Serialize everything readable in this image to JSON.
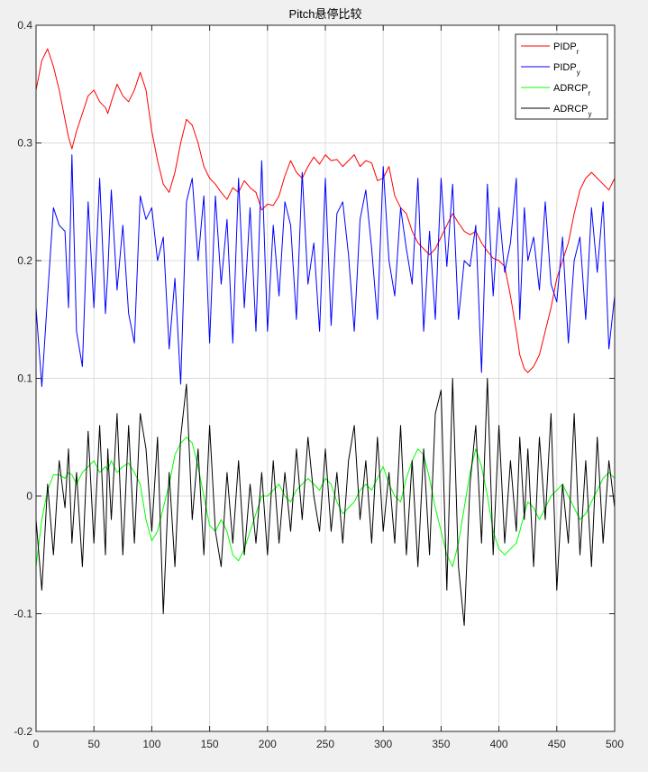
{
  "figure": {
    "title": "Pitch悬停比较"
  },
  "chart_data": {
    "type": "line",
    "title": "Pitch悬停比较",
    "xlabel": "",
    "ylabel": "",
    "xlim": [
      0,
      500
    ],
    "ylim": [
      -0.2,
      0.4
    ],
    "xticks": [
      0,
      50,
      100,
      150,
      200,
      250,
      300,
      350,
      400,
      450,
      500
    ],
    "yticks": [
      -0.2,
      -0.1,
      0,
      0.1,
      0.2,
      0.3,
      0.4
    ],
    "xtick_labels": [
      "0",
      "50",
      "100",
      "150",
      "200",
      "250",
      "300",
      "350",
      "400",
      "450",
      "500"
    ],
    "ytick_labels": [
      "-0.2",
      "-0.1",
      "0",
      "0.1",
      "0.2",
      "0.3",
      "0.4"
    ],
    "grid": true,
    "legend_position": "top-right",
    "series": [
      {
        "name": "PIDP",
        "subscript": "r",
        "color": "#ff0000",
        "x": [
          0,
          5,
          10,
          15,
          20,
          25,
          28,
          31,
          35,
          40,
          45,
          50,
          55,
          60,
          62,
          65,
          70,
          75,
          80,
          85,
          90,
          95,
          100,
          105,
          110,
          115,
          120,
          125,
          130,
          135,
          140,
          145,
          150,
          155,
          160,
          165,
          170,
          175,
          180,
          185,
          190,
          195,
          200,
          205,
          210,
          215,
          220,
          225,
          230,
          235,
          240,
          245,
          250,
          255,
          260,
          265,
          270,
          275,
          280,
          285,
          290,
          295,
          300,
          305,
          310,
          315,
          320,
          325,
          330,
          335,
          340,
          345,
          350,
          355,
          360,
          365,
          370,
          375,
          380,
          385,
          390,
          395,
          400,
          405,
          410,
          415,
          418,
          422,
          425,
          430,
          435,
          440,
          445,
          450,
          455,
          460,
          465,
          470,
          475,
          480,
          485,
          490,
          495,
          500
        ],
        "values": [
          0.345,
          0.37,
          0.38,
          0.365,
          0.345,
          0.32,
          0.305,
          0.295,
          0.31,
          0.325,
          0.34,
          0.345,
          0.335,
          0.33,
          0.325,
          0.335,
          0.35,
          0.34,
          0.335,
          0.345,
          0.36,
          0.345,
          0.31,
          0.285,
          0.265,
          0.258,
          0.275,
          0.3,
          0.32,
          0.315,
          0.3,
          0.28,
          0.27,
          0.265,
          0.258,
          0.252,
          0.262,
          0.258,
          0.268,
          0.262,
          0.258,
          0.243,
          0.248,
          0.247,
          0.255,
          0.272,
          0.285,
          0.275,
          0.27,
          0.28,
          0.288,
          0.282,
          0.29,
          0.285,
          0.286,
          0.28,
          0.285,
          0.29,
          0.28,
          0.285,
          0.283,
          0.268,
          0.27,
          0.28,
          0.255,
          0.245,
          0.24,
          0.225,
          0.215,
          0.21,
          0.205,
          0.21,
          0.22,
          0.23,
          0.24,
          0.232,
          0.225,
          0.222,
          0.225,
          0.215,
          0.208,
          0.202,
          0.2,
          0.195,
          0.17,
          0.14,
          0.12,
          0.108,
          0.105,
          0.11,
          0.12,
          0.14,
          0.16,
          0.185,
          0.2,
          0.215,
          0.24,
          0.26,
          0.27,
          0.275,
          0.27,
          0.265,
          0.26,
          0.27
        ]
      },
      {
        "name": "PIDP",
        "subscript": "y",
        "color": "#0000ff",
        "x": [
          0,
          5,
          10,
          15,
          20,
          25,
          28,
          31,
          35,
          40,
          45,
          50,
          55,
          60,
          62,
          65,
          70,
          75,
          80,
          85,
          90,
          95,
          100,
          105,
          110,
          115,
          120,
          125,
          130,
          135,
          140,
          145,
          150,
          155,
          160,
          165,
          170,
          175,
          180,
          185,
          190,
          195,
          200,
          205,
          210,
          215,
          220,
          225,
          230,
          235,
          240,
          245,
          250,
          255,
          260,
          265,
          270,
          275,
          280,
          285,
          290,
          295,
          300,
          305,
          310,
          315,
          320,
          325,
          330,
          335,
          340,
          345,
          350,
          355,
          360,
          365,
          370,
          375,
          380,
          385,
          390,
          395,
          400,
          405,
          410,
          415,
          418,
          422,
          425,
          430,
          435,
          440,
          445,
          450,
          455,
          460,
          465,
          470,
          475,
          480,
          485,
          490,
          495,
          500
        ],
        "values": [
          0.16,
          0.093,
          0.17,
          0.245,
          0.23,
          0.225,
          0.16,
          0.29,
          0.14,
          0.11,
          0.25,
          0.16,
          0.27,
          0.155,
          0.19,
          0.26,
          0.175,
          0.23,
          0.155,
          0.13,
          0.255,
          0.235,
          0.245,
          0.2,
          0.22,
          0.125,
          0.185,
          0.095,
          0.25,
          0.27,
          0.2,
          0.255,
          0.13,
          0.255,
          0.18,
          0.235,
          0.13,
          0.27,
          0.16,
          0.245,
          0.14,
          0.285,
          0.14,
          0.23,
          0.17,
          0.25,
          0.23,
          0.15,
          0.275,
          0.18,
          0.215,
          0.14,
          0.27,
          0.145,
          0.24,
          0.25,
          0.205,
          0.14,
          0.235,
          0.26,
          0.21,
          0.15,
          0.28,
          0.2,
          0.17,
          0.245,
          0.21,
          0.18,
          0.27,
          0.14,
          0.225,
          0.15,
          0.27,
          0.195,
          0.265,
          0.15,
          0.2,
          0.195,
          0.23,
          0.105,
          0.265,
          0.17,
          0.245,
          0.19,
          0.215,
          0.27,
          0.15,
          0.245,
          0.2,
          0.22,
          0.175,
          0.25,
          0.18,
          0.165,
          0.22,
          0.13,
          0.2,
          0.22,
          0.15,
          0.245,
          0.19,
          0.25,
          0.125,
          0.17
        ]
      },
      {
        "name": "ADRCP",
        "subscript": "r",
        "color": "#00ff00",
        "x": [
          0,
          5,
          10,
          15,
          20,
          25,
          28,
          31,
          35,
          40,
          45,
          50,
          55,
          60,
          62,
          65,
          70,
          75,
          80,
          85,
          90,
          95,
          100,
          105,
          110,
          115,
          120,
          125,
          130,
          135,
          140,
          145,
          150,
          155,
          160,
          165,
          170,
          175,
          180,
          185,
          190,
          195,
          200,
          205,
          210,
          215,
          220,
          225,
          230,
          235,
          240,
          245,
          250,
          255,
          260,
          265,
          270,
          275,
          280,
          285,
          290,
          295,
          300,
          305,
          310,
          315,
          320,
          325,
          330,
          335,
          340,
          345,
          350,
          355,
          360,
          365,
          370,
          375,
          380,
          385,
          390,
          395,
          400,
          405,
          410,
          415,
          418,
          422,
          425,
          430,
          435,
          440,
          445,
          450,
          455,
          460,
          465,
          470,
          475,
          480,
          485,
          490,
          495,
          500
        ],
        "values": [
          -0.06,
          -0.02,
          0.005,
          0.018,
          0.018,
          0.015,
          0.02,
          0.018,
          0.01,
          0.02,
          0.025,
          0.03,
          0.02,
          0.025,
          0.022,
          0.03,
          0.02,
          0.025,
          0.028,
          0.02,
          0.01,
          -0.02,
          -0.038,
          -0.03,
          -0.01,
          0.01,
          0.035,
          0.045,
          0.05,
          0.045,
          0.025,
          0.0,
          -0.025,
          -0.03,
          -0.02,
          -0.03,
          -0.05,
          -0.055,
          -0.045,
          -0.03,
          -0.015,
          0.0,
          0.0,
          0.005,
          0.01,
          0.0,
          -0.005,
          0.005,
          0.01,
          0.015,
          0.01,
          0.005,
          0.015,
          0.01,
          -0.005,
          -0.015,
          -0.01,
          -0.005,
          0.005,
          0.01,
          0.005,
          0.015,
          0.025,
          0.01,
          0.0,
          -0.005,
          0.015,
          0.03,
          0.04,
          0.035,
          0.015,
          -0.01,
          -0.03,
          -0.05,
          -0.06,
          -0.04,
          -0.01,
          0.02,
          0.04,
          0.025,
          0.0,
          -0.03,
          -0.045,
          -0.05,
          -0.045,
          -0.04,
          -0.03,
          -0.015,
          -0.005,
          -0.01,
          -0.02,
          -0.01,
          0.0,
          0.005,
          0.01,
          0.0,
          -0.01,
          -0.02,
          -0.015,
          -0.005,
          0.005,
          0.015,
          0.02,
          0.015
        ]
      },
      {
        "name": "ADRCP",
        "subscript": "y",
        "color": "#000000",
        "x": [
          0,
          5,
          10,
          15,
          20,
          25,
          28,
          31,
          35,
          40,
          45,
          50,
          55,
          60,
          62,
          65,
          70,
          75,
          80,
          85,
          90,
          95,
          100,
          105,
          110,
          115,
          120,
          125,
          130,
          135,
          140,
          145,
          150,
          155,
          160,
          165,
          170,
          175,
          180,
          185,
          190,
          195,
          200,
          205,
          210,
          215,
          220,
          225,
          230,
          235,
          240,
          245,
          250,
          255,
          260,
          265,
          270,
          275,
          280,
          285,
          290,
          295,
          300,
          305,
          310,
          315,
          320,
          325,
          330,
          335,
          340,
          345,
          350,
          355,
          360,
          365,
          370,
          375,
          380,
          385,
          390,
          395,
          400,
          405,
          410,
          415,
          418,
          422,
          425,
          430,
          435,
          440,
          445,
          450,
          455,
          460,
          465,
          470,
          475,
          480,
          485,
          490,
          495,
          500
        ],
        "values": [
          -0.02,
          -0.08,
          0.01,
          -0.05,
          0.03,
          -0.01,
          0.04,
          -0.04,
          0.02,
          -0.06,
          0.055,
          -0.04,
          0.06,
          -0.05,
          0.04,
          -0.02,
          0.07,
          -0.05,
          0.06,
          -0.04,
          0.07,
          0.04,
          -0.03,
          0.05,
          -0.1,
          0.02,
          -0.06,
          0.05,
          0.095,
          -0.02,
          0.04,
          -0.05,
          0.06,
          -0.03,
          -0.06,
          0.02,
          -0.04,
          0.03,
          -0.05,
          0.01,
          -0.04,
          0.02,
          -0.05,
          0.03,
          -0.04,
          0.02,
          -0.03,
          0.04,
          -0.02,
          0.05,
          0.0,
          -0.03,
          0.04,
          -0.03,
          0.02,
          -0.04,
          0.03,
          0.06,
          -0.02,
          0.03,
          -0.04,
          0.05,
          -0.03,
          0.02,
          -0.04,
          0.06,
          -0.05,
          0.03,
          -0.06,
          0.04,
          -0.05,
          0.07,
          0.09,
          -0.08,
          0.1,
          -0.06,
          -0.11,
          0.01,
          0.06,
          -0.04,
          0.1,
          -0.05,
          0.06,
          -0.04,
          0.03,
          -0.03,
          0.05,
          -0.02,
          0.04,
          -0.06,
          0.05,
          -0.02,
          0.07,
          -0.08,
          0.01,
          -0.04,
          0.07,
          -0.05,
          0.03,
          -0.06,
          0.05,
          -0.04,
          0.03,
          -0.01
        ]
      }
    ]
  }
}
